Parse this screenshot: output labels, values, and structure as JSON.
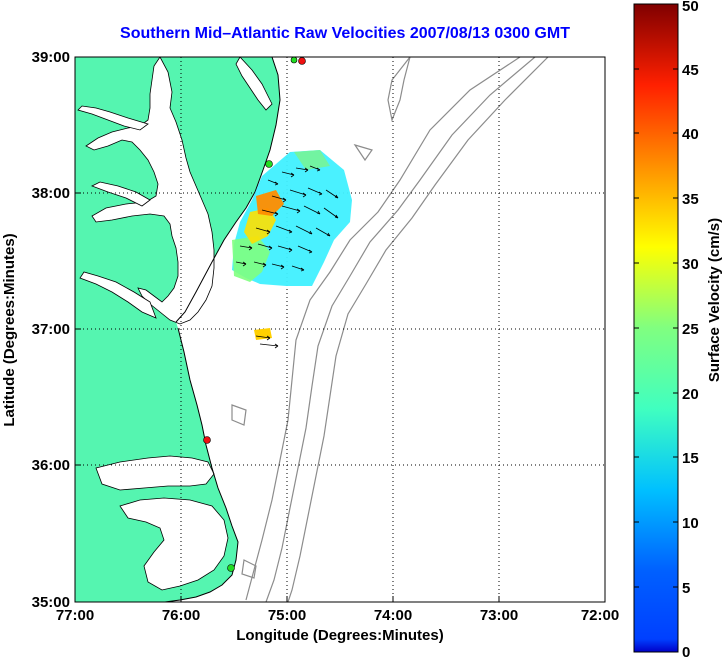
{
  "title": "Southern Mid–Atlantic Raw Velocities 2007/08/13 0300 GMT",
  "x_axis": {
    "label": "Longitude (Degrees:Minutes)",
    "ticks": [
      "77:00",
      "76:00",
      "75:00",
      "74:00",
      "73:00",
      "72:00"
    ]
  },
  "y_axis": {
    "label": "Latitude (Degrees:Minutes)",
    "ticks": [
      "39:00",
      "38:00",
      "37:00",
      "36:00",
      "35:00"
    ]
  },
  "colorbar": {
    "label": "Surface Velocity (cm/s)",
    "ticks": [
      "50",
      "45",
      "40",
      "35",
      "30",
      "25",
      "20",
      "15",
      "10",
      "5",
      "0"
    ],
    "range": [
      0,
      50
    ],
    "colormap": "jet"
  },
  "colors": {
    "land": "#55f5b0",
    "water": "#ffffff",
    "coastline": "#000000",
    "bathymetry": "#8c8c8c",
    "grid": "#000000",
    "station_green": "#22dd22",
    "station_red": "#ee1111"
  },
  "map_extent": {
    "lon": [
      -77,
      -72
    ],
    "lat": [
      35,
      39
    ]
  },
  "grid": "dotted",
  "stations": [
    {
      "color": "red",
      "lon": -74.85,
      "lat": 38.97
    },
    {
      "color": "green",
      "lon": -75.1,
      "lat": 38.2
    },
    {
      "color": "red",
      "lon": -75.75,
      "lat": 36.18
    },
    {
      "color": "green",
      "lon": -75.52,
      "lat": 35.25
    }
  ]
}
